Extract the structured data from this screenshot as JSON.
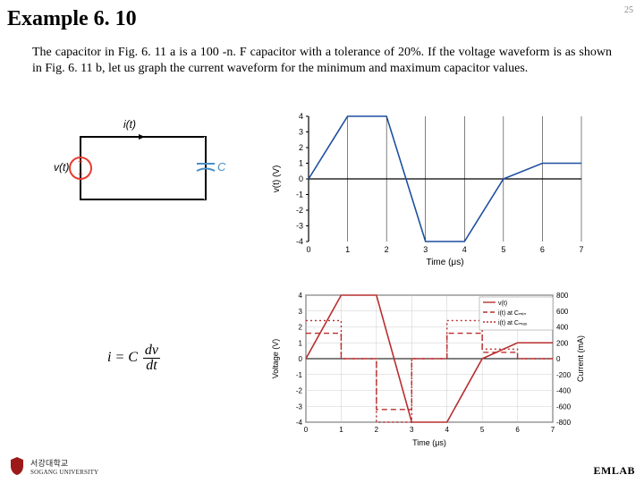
{
  "page": {
    "title": "Example 6. 10",
    "number": "25",
    "body": "The capacitor in Fig. 6. 11 a is a 100 -n. F capacitor with a tolerance of 20%. If the voltage waveform is as shown in Fig. 6. 11 b, let us graph the current waveform for the minimum and maximum capacitor values.",
    "footer_lab": "EMLAB",
    "university_korean": "서강대학교",
    "university_eng": "SOGANG UNIVERSITY"
  },
  "circuit": {
    "i_label": "i(t)",
    "v_label": "v(t)",
    "c_label": "C",
    "plus": "+",
    "minus": "−",
    "source_color": "#e73c2f",
    "cap_color": "#4a8fc7",
    "wire_color": "#000000"
  },
  "equation": {
    "lhs": "i",
    "rhs_c": "C",
    "rhs_num": "dv",
    "rhs_den": "dt"
  },
  "chart1": {
    "type": "line",
    "title": "",
    "xlabel": "Time (μs)",
    "ylabel": "v(t) (V)",
    "x_ticks": [
      0,
      1,
      2,
      3,
      4,
      5,
      6,
      7
    ],
    "y_ticks": [
      -4,
      -3,
      -2,
      -1,
      0,
      1,
      2,
      3,
      4
    ],
    "xlim": [
      0,
      7
    ],
    "ylim": [
      -4,
      4
    ],
    "series": {
      "color": "#1f4fa0",
      "width": 1.6,
      "points": [
        [
          0,
          0
        ],
        [
          1,
          4
        ],
        [
          2,
          4
        ],
        [
          3,
          -4
        ],
        [
          4,
          -4
        ],
        [
          5,
          0
        ],
        [
          6,
          1
        ],
        [
          7,
          1
        ]
      ]
    },
    "axis_color": "#000000",
    "grid_color": "#000000",
    "background": "#ffffff",
    "tick_fontsize": 9,
    "label_fontsize": 10
  },
  "chart2": {
    "type": "multi-line-dual-axis",
    "xlabel": "Time (μs)",
    "ylabel_left": "Voltage (V)",
    "ylabel_right": "Current (mA)",
    "x_ticks": [
      0,
      1,
      2,
      3,
      4,
      5,
      6,
      7
    ],
    "y_ticks_left": [
      -4,
      -3,
      -2,
      -1,
      0,
      1,
      2,
      3,
      4
    ],
    "y_ticks_right": [
      -800,
      -600,
      -400,
      -200,
      0,
      200,
      400,
      600,
      800
    ],
    "xlim": [
      0,
      7
    ],
    "ylim_left": [
      -4,
      4
    ],
    "legend": {
      "position": "top-right",
      "items": [
        {
          "label": "v(t)",
          "color": "#b82e2e",
          "dash": "solid"
        },
        {
          "label": "i(t) at Cₘᵢₙ",
          "color": "#b82e2e",
          "dash": "dashed"
        },
        {
          "label": "i(t) at Cₘₐₓ",
          "color": "#b82e2e",
          "dash": "dotted"
        }
      ]
    },
    "series_v": {
      "color": "#b82e2e",
      "width": 1.6,
      "dash": "solid",
      "points": [
        [
          0,
          0
        ],
        [
          1,
          4
        ],
        [
          2,
          4
        ],
        [
          3,
          -4
        ],
        [
          4,
          -4
        ],
        [
          5,
          0
        ],
        [
          6,
          1
        ],
        [
          7,
          1
        ]
      ]
    },
    "series_imin": {
      "color": "#b82e2e",
      "width": 1.4,
      "dash": "6,4",
      "points": [
        [
          0,
          1.6
        ],
        [
          1,
          1.6
        ],
        [
          1,
          0
        ],
        [
          2,
          0
        ],
        [
          2,
          -3.2
        ],
        [
          3,
          -3.2
        ],
        [
          3,
          0
        ],
        [
          4,
          0
        ],
        [
          4,
          1.6
        ],
        [
          5,
          1.6
        ],
        [
          5,
          0.4
        ],
        [
          6,
          0.4
        ],
        [
          6,
          0
        ],
        [
          7,
          0
        ]
      ]
    },
    "series_imax": {
      "color": "#b82e2e",
      "width": 1.4,
      "dash": "2,3",
      "points": [
        [
          0,
          2.4
        ],
        [
          1,
          2.4
        ],
        [
          1,
          0
        ],
        [
          2,
          0
        ],
        [
          2,
          -4.0
        ],
        [
          3,
          -4.0
        ],
        [
          3,
          0
        ],
        [
          4,
          0
        ],
        [
          4,
          2.4
        ],
        [
          5,
          2.4
        ],
        [
          5,
          0.6
        ],
        [
          6,
          0.6
        ],
        [
          6,
          0
        ],
        [
          7,
          0
        ]
      ]
    },
    "axis_color": "#000000",
    "grid_color": "#cccccc",
    "background": "#ffffff",
    "tick_fontsize": 8,
    "label_fontsize": 9
  },
  "shield_color": "#9c1a1a"
}
